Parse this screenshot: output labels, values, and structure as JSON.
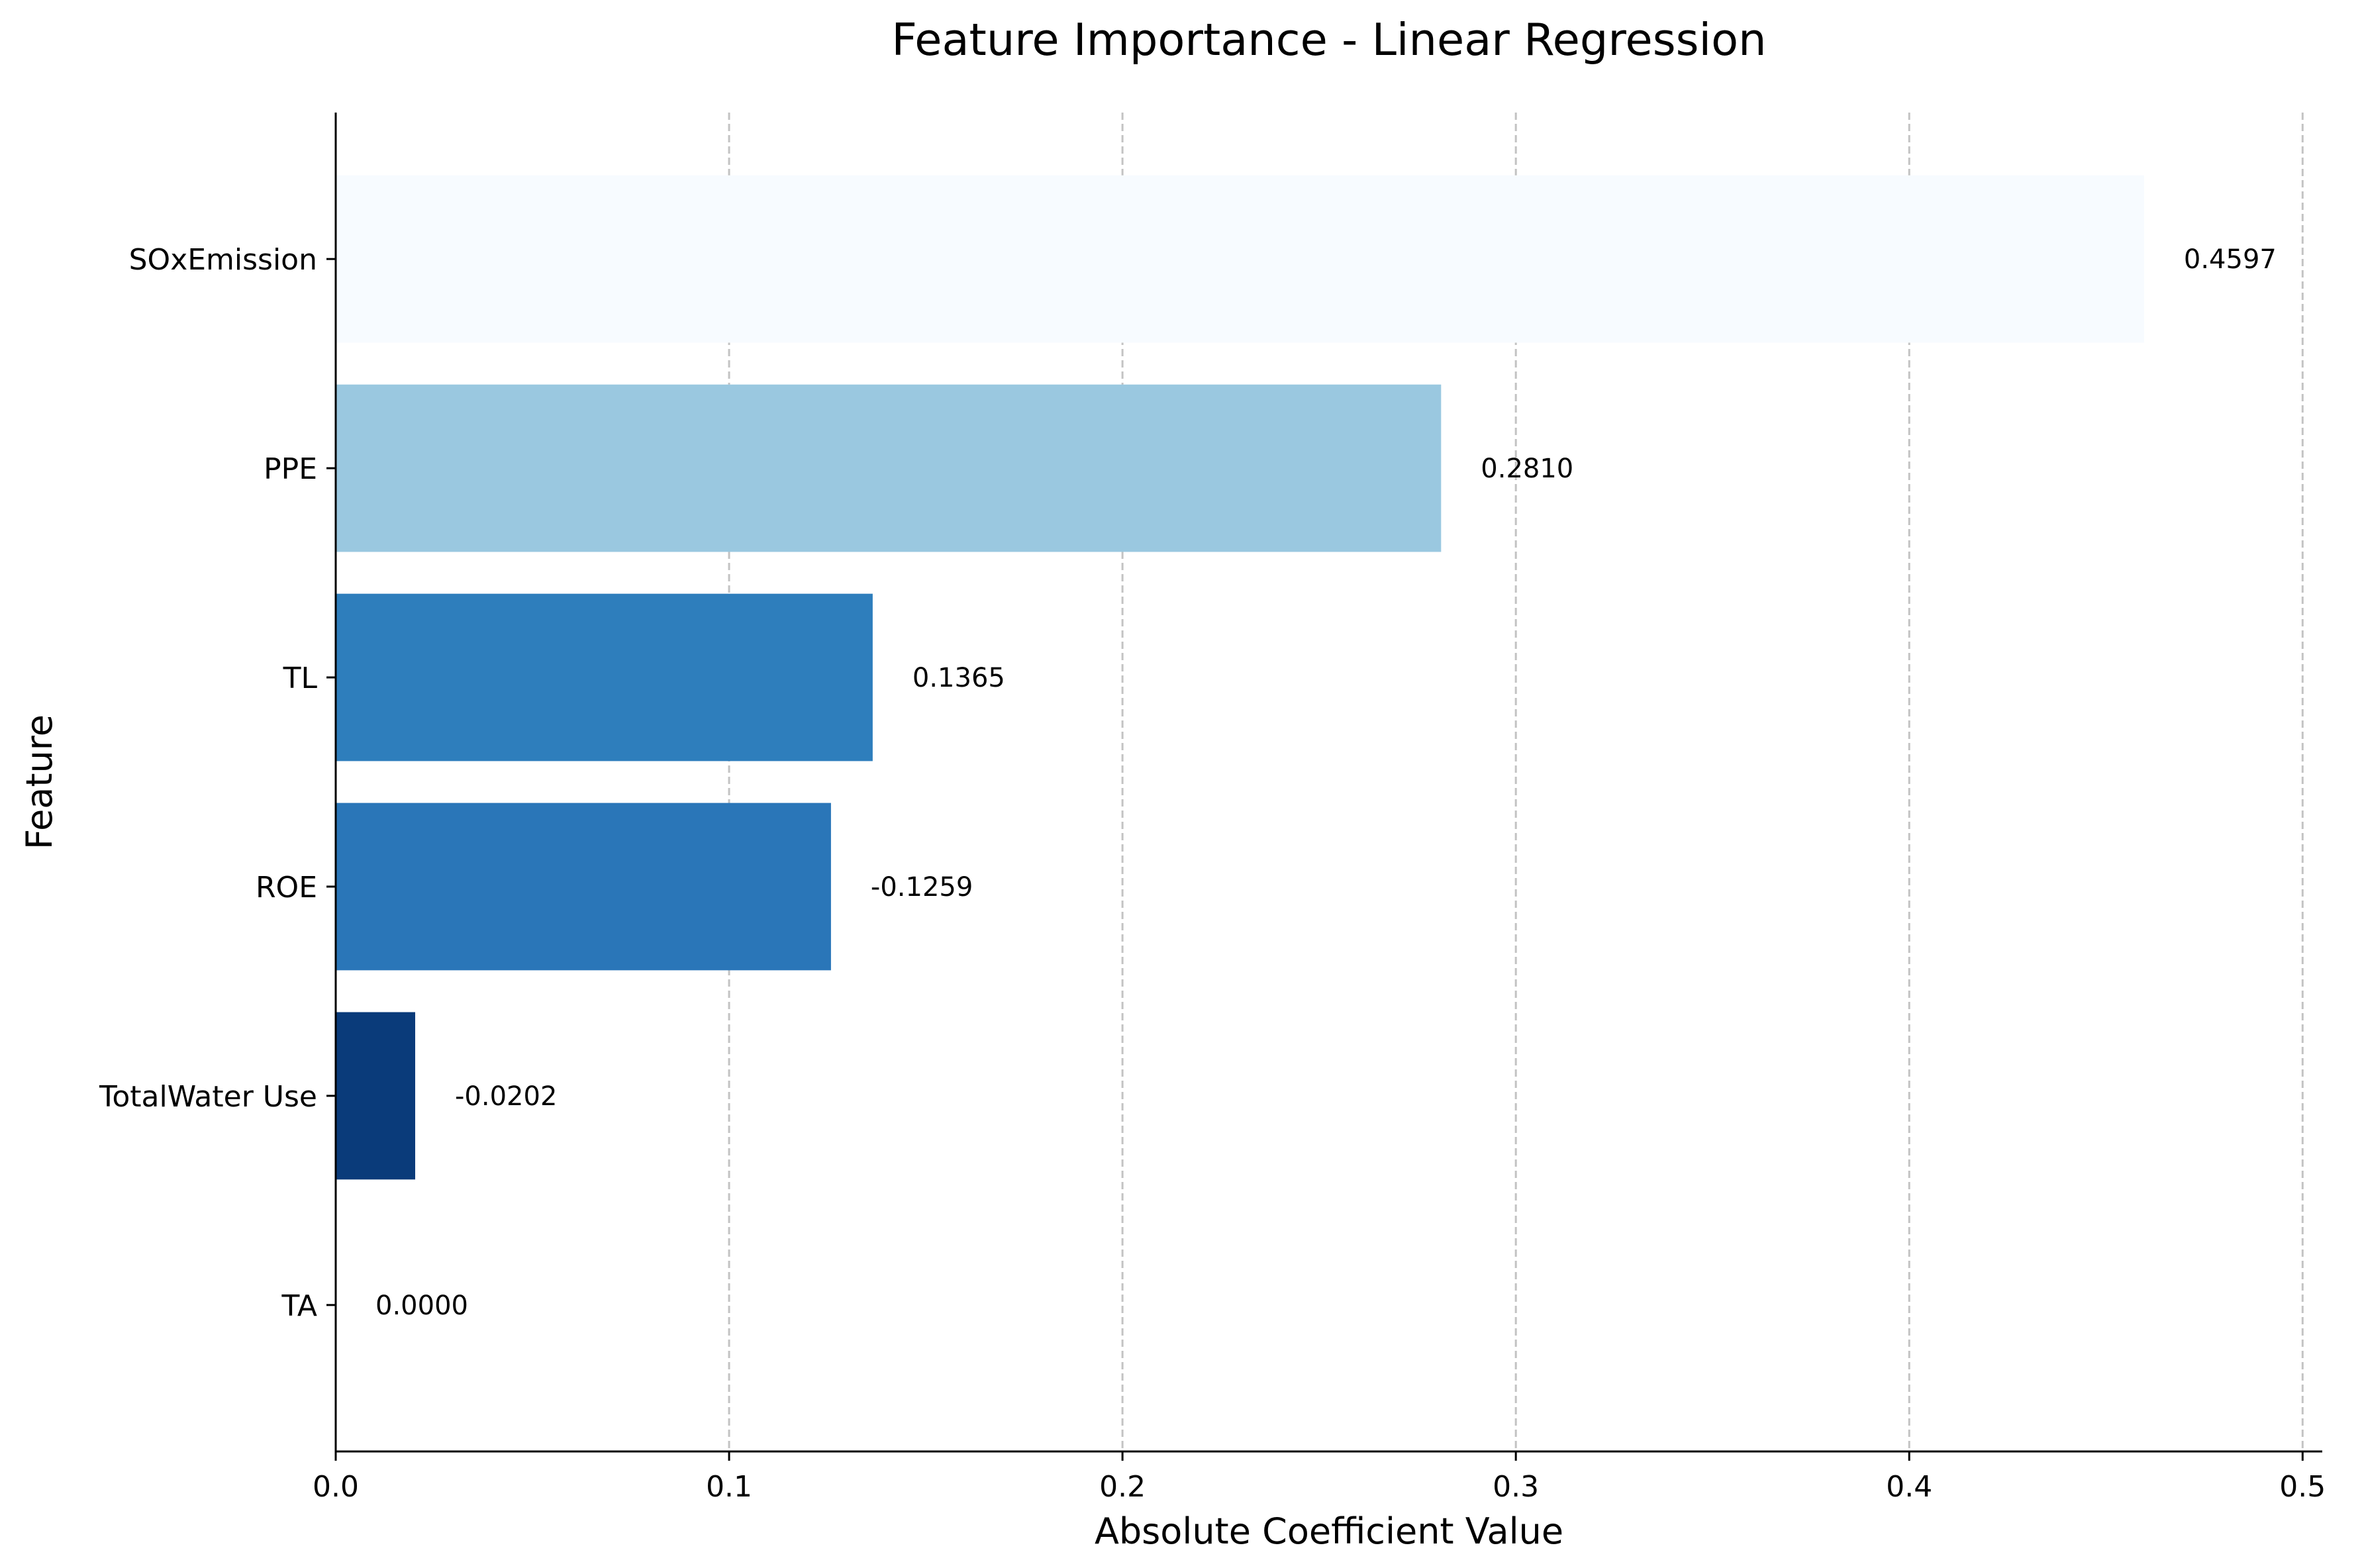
{
  "chart_data": {
    "type": "bar",
    "orientation": "horizontal",
    "title": "Feature Importance - Linear Regression",
    "xlabel": "Absolute Coefficient Value",
    "ylabel": "Feature",
    "xlim": [
      0,
      0.505
    ],
    "xticks": [
      0.0,
      0.1,
      0.2,
      0.3,
      0.4,
      0.5
    ],
    "xtick_labels": [
      "0.0",
      "0.1",
      "0.2",
      "0.3",
      "0.4",
      "0.5"
    ],
    "grid": "x-axis dashed",
    "legend": "none",
    "categories": [
      "SOxEmission",
      "PPE",
      "TL",
      "ROE",
      "TotalWater Use",
      "TA"
    ],
    "values": [
      0.4597,
      0.281,
      0.1365,
      0.1259,
      0.0202,
      0.0
    ],
    "data_labels": [
      "0.4597",
      "0.2810",
      "0.1365",
      "-0.1259",
      "-0.0202",
      "0.0000"
    ],
    "colors": [
      "#f7fbff",
      "#9ac8e0",
      "#2e7ebc",
      "#2a76b8",
      "#0a3b7a",
      "#08306b"
    ]
  }
}
